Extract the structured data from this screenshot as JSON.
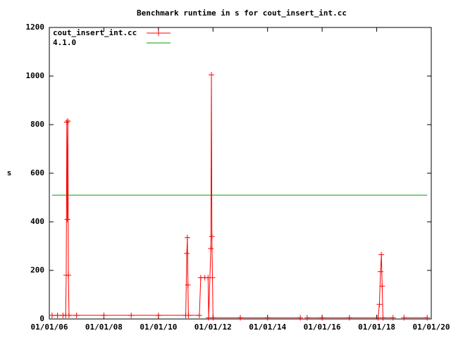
{
  "chart_data": {
    "type": "line",
    "title": "Benchmark runtime in s for cout_insert_int.cc",
    "y_label": "s",
    "x": [
      2006.1,
      2006.3,
      2006.5,
      2006.6,
      2006.62,
      2006.64,
      2006.66,
      2006.68,
      2006.7,
      2006.72,
      2007,
      2008,
      2009,
      2010,
      2011,
      2011.04,
      2011.06,
      2011.08,
      2011.1,
      2011.5,
      2011.55,
      2011.7,
      2011.82,
      2011.84,
      2011.92,
      2011.94,
      2011.96,
      2011.98,
      2012.0,
      2013,
      2014,
      2015.2,
      2015.3,
      2015.45,
      2016,
      2017,
      2018.05,
      2018.1,
      2018.14,
      2018.17,
      2018.2,
      2018.23,
      2018.6,
      2018.7,
      2019,
      2019.85
    ],
    "series": [
      {
        "name": "cout_insert_int.cc",
        "color": "#ff0000",
        "values": [
          15,
          15,
          15,
          15,
          180,
          810,
          410,
          815,
          180,
          15,
          15,
          15,
          15,
          15,
          15,
          270,
          335,
          140,
          15,
          15,
          170,
          170,
          170,
          5,
          290,
          1005,
          340,
          170,
          5,
          5,
          5,
          5,
          null,
          5,
          5,
          5,
          5,
          60,
          195,
          265,
          135,
          5,
          5,
          null,
          5,
          5
        ]
      },
      {
        "name": "4.1.0",
        "color": "#00a000",
        "x": [
          2006.1,
          2019.85
        ],
        "values": [
          510,
          510
        ]
      }
    ],
    "xlim": [
      2006,
      2020
    ],
    "xticks": [
      {
        "value": 2006,
        "label": "01/01/06"
      },
      {
        "value": 2008,
        "label": "01/01/08"
      },
      {
        "value": 2010,
        "label": "01/01/10"
      },
      {
        "value": 2012,
        "label": "01/01/12"
      },
      {
        "value": 2014,
        "label": "01/01/14"
      },
      {
        "value": 2016,
        "label": "01/01/16"
      },
      {
        "value": 2018,
        "label": "01/01/18"
      },
      {
        "value": 2020,
        "label": "01/01/20"
      }
    ],
    "ylim": [
      0,
      1200
    ],
    "yticks": [
      0,
      200,
      400,
      600,
      800,
      1000,
      1200
    ]
  }
}
